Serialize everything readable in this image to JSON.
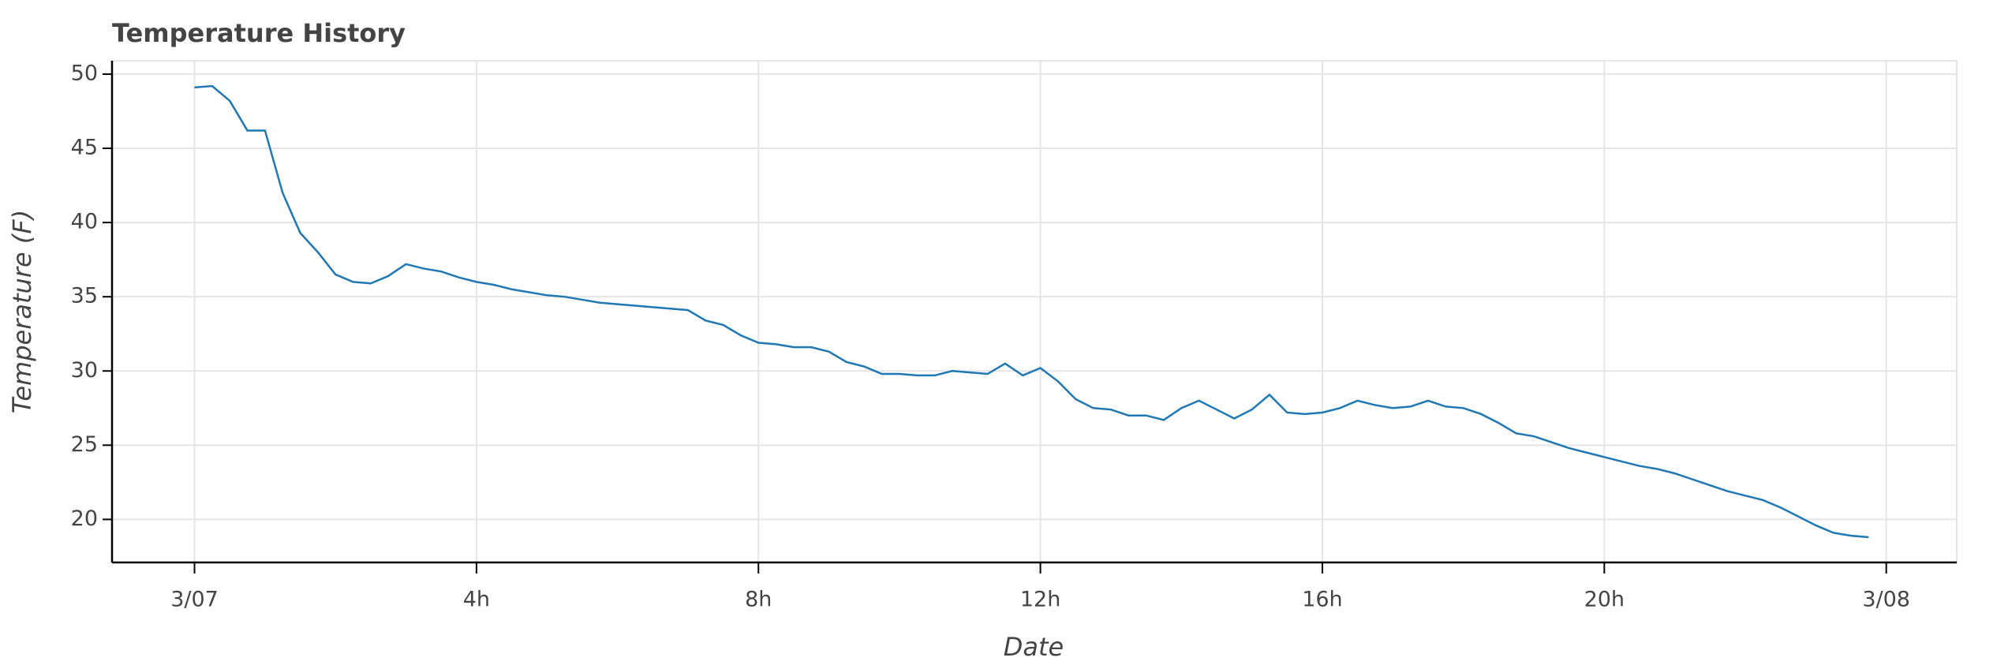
{
  "chart_data": {
    "type": "line",
    "title": "Temperature History",
    "xlabel": "Date",
    "ylabel": "Temperature (F)",
    "x": [
      0,
      0.25,
      0.5,
      0.75,
      1,
      1.25,
      1.5,
      1.75,
      2,
      2.25,
      2.5,
      2.75,
      3,
      3.25,
      3.5,
      3.75,
      4,
      4.25,
      4.5,
      4.75,
      5,
      5.25,
      5.5,
      5.75,
      6,
      6.25,
      6.5,
      6.75,
      7,
      7.25,
      7.5,
      7.75,
      8,
      8.25,
      8.5,
      8.75,
      9,
      9.25,
      9.5,
      9.75,
      10,
      10.25,
      10.5,
      10.75,
      11,
      11.25,
      11.5,
      11.75,
      12,
      12.25,
      12.5,
      12.75,
      13,
      13.25,
      13.5,
      13.75,
      14,
      14.25,
      14.5,
      14.75,
      15,
      15.25,
      15.5,
      15.75,
      16,
      16.25,
      16.5,
      16.75,
      17,
      17.25,
      17.5,
      17.75,
      18,
      18.25,
      18.5,
      18.75,
      19,
      19.25,
      19.5,
      19.75,
      20,
      20.25,
      20.5,
      20.75,
      21,
      21.25,
      21.5,
      21.75,
      22,
      22.25,
      22.5,
      22.75,
      23,
      23.25,
      23.5,
      23.75
    ],
    "series": [
      {
        "name": "Temperature",
        "color": "#1f77b4",
        "values": [
          49.1,
          49.2,
          48.2,
          46.2,
          46.2,
          42.0,
          39.3,
          38.0,
          36.5,
          36.0,
          35.9,
          36.4,
          37.2,
          36.9,
          36.7,
          36.3,
          36.0,
          35.8,
          35.5,
          35.3,
          35.1,
          35.0,
          34.8,
          34.6,
          34.5,
          34.4,
          34.3,
          34.2,
          34.1,
          33.4,
          33.1,
          32.4,
          31.9,
          31.8,
          31.6,
          31.6,
          31.3,
          30.6,
          30.3,
          29.8,
          29.8,
          29.7,
          29.7,
          30.0,
          29.9,
          29.8,
          30.5,
          29.7,
          30.2,
          29.3,
          28.1,
          27.5,
          27.4,
          27.0,
          27.0,
          26.7,
          27.5,
          28.0,
          27.4,
          26.8,
          27.4,
          28.4,
          27.2,
          27.1,
          27.2,
          27.5,
          28.0,
          27.7,
          27.5,
          27.6,
          28.0,
          27.6,
          27.5,
          27.1,
          26.5,
          25.8,
          25.6,
          25.2,
          24.8,
          24.5,
          24.2,
          23.9,
          23.6,
          23.4,
          23.1,
          22.7,
          22.3,
          21.9,
          21.6,
          21.3,
          20.8,
          20.2,
          19.6,
          19.1,
          18.9,
          18.8
        ]
      }
    ],
    "xlim": [
      -1.17,
      25.0
    ],
    "xticks": [
      {
        "value": 0,
        "label": "3/07"
      },
      {
        "value": 4,
        "label": "4h"
      },
      {
        "value": 8,
        "label": "8h"
      },
      {
        "value": 12,
        "label": "12h"
      },
      {
        "value": 16,
        "label": "16h"
      },
      {
        "value": 20,
        "label": "20h"
      },
      {
        "value": 24,
        "label": "3/08"
      }
    ],
    "ylim": [
      17.1,
      50.9
    ],
    "yticks": [
      20,
      25,
      30,
      35,
      40,
      45,
      50
    ],
    "grid": true
  }
}
